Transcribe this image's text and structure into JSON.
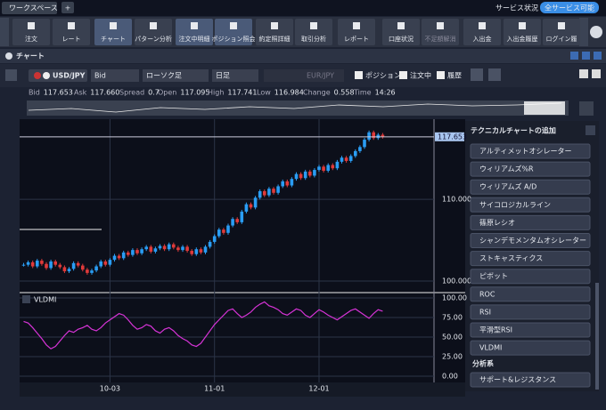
{
  "top_bar": {
    "tab": "ワークスペース",
    "add": "+",
    "status_label": "サービス状況",
    "status": "全サービス可能"
  },
  "toolbar": {
    "buttons": [
      "注文",
      "レート",
      "チャート",
      "パターン分析",
      "注文中明細",
      "ポジション照会",
      "約定照詳細",
      "取引分析",
      "レポート",
      "口座状況",
      "不足額解消",
      "入出金",
      "入出金履歴",
      "ログイン履"
    ]
  },
  "window": {
    "title": "チャート"
  },
  "controls": {
    "symbol": "USD/JPY",
    "price_type": "Bid",
    "chart_type": "ローソク足",
    "period": "日足",
    "compare_symbol": "EUR/JPY",
    "checkboxes": [
      "ポジション",
      "注文中",
      "履歴"
    ]
  },
  "quote": [
    {
      "label": "Bid",
      "value": "117.653"
    },
    {
      "label": "Ask",
      "value": "117.660"
    },
    {
      "label": "Spread",
      "value": "0.7"
    },
    {
      "label": "Open",
      "value": "117.095"
    },
    {
      "label": "High",
      "value": "117.741"
    },
    {
      "label": "Low",
      "value": "116.984"
    },
    {
      "label": "Change",
      "value": "0.558"
    },
    {
      "label": "Time",
      "value": "14:26"
    }
  ],
  "chart_data": {
    "type": "candlestick",
    "up_color": "#2a9df4",
    "down_color": "#e03a3a",
    "categories": [
      null,
      null,
      null,
      null,
      null,
      null,
      null,
      null,
      null,
      null,
      null,
      null,
      null,
      null,
      null,
      null,
      null,
      null,
      null,
      "10-03",
      null,
      null,
      null,
      null,
      null,
      null,
      null,
      null,
      null,
      null,
      null,
      null,
      null,
      null,
      null,
      null,
      null,
      null,
      null,
      null,
      null,
      null,
      "11-01",
      null,
      null,
      null,
      null,
      null,
      null,
      null,
      null,
      null,
      null,
      null,
      null,
      null,
      null,
      null,
      null,
      null,
      null,
      null,
      null,
      null,
      null,
      "12-01",
      null,
      null,
      null,
      null,
      null,
      null,
      null,
      null,
      null,
      null,
      null,
      null,
      null,
      null
    ],
    "values": [
      102.0,
      102.3,
      101.8,
      102.5,
      102.1,
      101.6,
      102.4,
      102.0,
      101.7,
      101.2,
      101.5,
      102.2,
      101.9,
      101.4,
      101.0,
      101.3,
      101.8,
      102.4,
      102.0,
      102.6,
      103.1,
      102.8,
      103.5,
      103.2,
      103.8,
      103.4,
      103.9,
      104.2,
      103.6,
      104.0,
      104.3,
      103.9,
      104.5,
      104.1,
      103.8,
      104.2,
      103.7,
      103.3,
      103.9,
      103.5,
      104.2,
      104.8,
      105.5,
      106.3,
      105.9,
      106.8,
      107.6,
      107.2,
      108.5,
      109.4,
      109.0,
      110.2,
      111.0,
      110.5,
      111.3,
      110.8,
      111.6,
      112.2,
      111.7,
      112.5,
      113.1,
      112.6,
      113.4,
      112.9,
      113.6,
      114.0,
      113.5,
      114.2,
      113.8,
      114.6,
      115.1,
      114.7,
      115.3,
      115.9,
      116.4,
      117.3,
      118.2,
      117.5,
      117.9,
      117.653
    ],
    "ylim": [
      98.7,
      119.7
    ],
    "yticks": [
      {
        "value": 110,
        "label": "110.000"
      },
      {
        "value": 100,
        "label": "100.000"
      }
    ],
    "last_price": 117.653,
    "indicator": {
      "name": "VLDMI",
      "color": "#d633d6",
      "ylim": [
        -8,
        105.7
      ],
      "yticks": [
        {
          "value": 100,
          "label": "100.00"
        },
        {
          "value": 75,
          "label": "75.00"
        },
        {
          "value": 50,
          "label": "50.00"
        },
        {
          "value": 25,
          "label": "25.00"
        },
        {
          "value": 0,
          "label": "0.00"
        }
      ],
      "values": [
        70,
        68,
        62,
        55,
        48,
        40,
        35,
        38,
        45,
        52,
        58,
        56,
        60,
        62,
        65,
        60,
        58,
        62,
        68,
        72,
        76,
        80,
        78,
        72,
        65,
        60,
        62,
        66,
        64,
        58,
        55,
        60,
        62,
        58,
        52,
        48,
        45,
        40,
        38,
        42,
        50,
        58,
        66,
        72,
        78,
        84,
        86,
        80,
        75,
        78,
        82,
        88,
        92,
        95,
        90,
        88,
        85,
        80,
        78,
        82,
        86,
        84,
        78,
        75,
        80,
        85,
        82,
        78,
        75,
        72,
        76,
        80,
        84,
        86,
        82,
        78,
        74,
        80,
        85,
        83
      ]
    }
  },
  "panel": {
    "title": "テクニカルチャートの追加",
    "items": [
      "アルティメットオシレーター",
      "ウィリアムズ%R",
      "ウィリアムズ A/D",
      "サイコロジカルライン",
      "篠原レシオ",
      "シャンデモメンタムオシレーター",
      "ストキャスティクス",
      "ピボット",
      "ROC",
      "RSI",
      "平滑型RSI",
      "VLDMI"
    ],
    "section": "分析系",
    "section_items": [
      "サポート&レジスタンス"
    ]
  }
}
